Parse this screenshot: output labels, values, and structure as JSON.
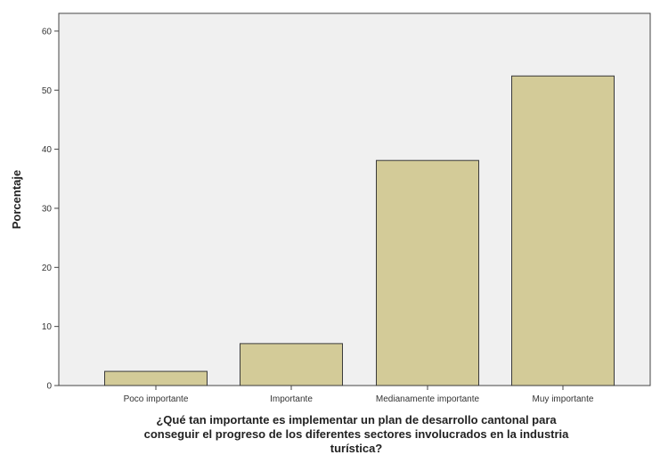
{
  "chart_data": {
    "type": "bar",
    "categories": [
      "Poco importante",
      "Importante",
      "Medianamente importante",
      "Muy importante"
    ],
    "values": [
      2.4,
      7.1,
      38.1,
      52.4
    ],
    "title": "",
    "xlabel_lines": [
      "¿Qué tan importante es implementar un plan de desarrollo cantonal para",
      "conseguir el progreso de los diferentes sectores involucrados en la industria",
      "turística?"
    ],
    "ylabel": "Porcentaje",
    "ylim": [
      0,
      63
    ],
    "yticks": [
      0,
      10,
      20,
      30,
      40,
      50,
      60
    ],
    "grid": false,
    "colors": {
      "bar_fill": "#d3cb98",
      "bar_stroke": "#3a3a3a",
      "plot_background": "#f0f0f0",
      "frame": "#444444"
    }
  }
}
